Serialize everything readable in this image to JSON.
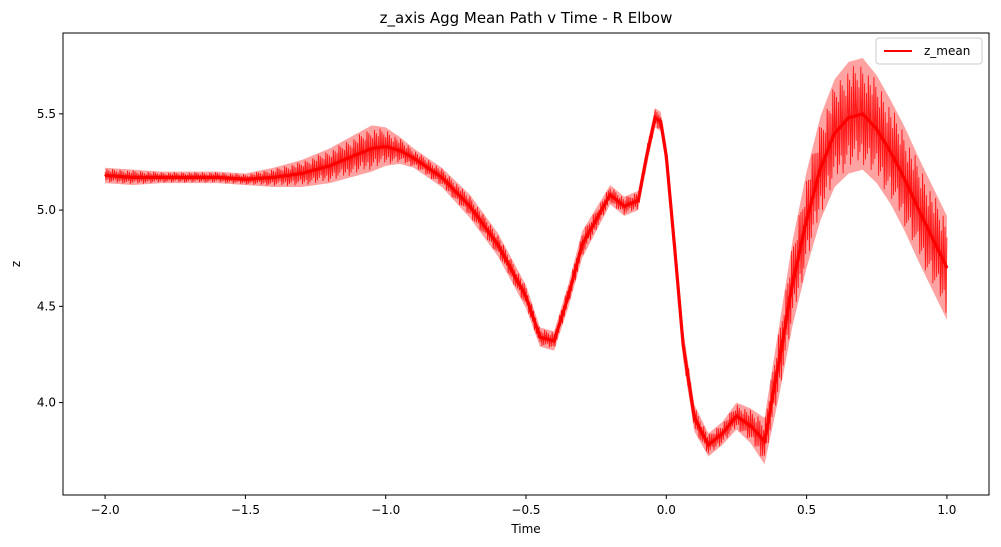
{
  "chart_data": {
    "type": "line",
    "title": "z_axis Agg Mean Path v Time - R Elbow",
    "xlabel": "Time",
    "ylabel": "z",
    "xlim": [
      -2.15,
      1.15
    ],
    "ylim": [
      3.52,
      5.92
    ],
    "xticks": [
      -2.0,
      -1.5,
      -1.0,
      -0.5,
      0.0,
      0.5,
      1.0
    ],
    "xtick_labels": [
      "−2.0",
      "−1.5",
      "−1.0",
      "−0.5",
      "0.0",
      "0.5",
      "1.0"
    ],
    "yticks": [
      4.0,
      4.5,
      5.0,
      5.5
    ],
    "ytick_labels": [
      "4.0",
      "4.5",
      "5.0",
      "5.5"
    ],
    "grid": false,
    "legend_position": "top-right",
    "colors": {
      "line": "#ff0000",
      "band": "#ff5555"
    },
    "series": [
      {
        "name": "z_mean",
        "x": [
          -2.0,
          -1.9,
          -1.8,
          -1.7,
          -1.6,
          -1.5,
          -1.4,
          -1.3,
          -1.2,
          -1.1,
          -1.05,
          -1.0,
          -0.95,
          -0.9,
          -0.8,
          -0.7,
          -0.6,
          -0.5,
          -0.45,
          -0.4,
          -0.35,
          -0.3,
          -0.25,
          -0.2,
          -0.15,
          -0.1,
          -0.07,
          -0.04,
          -0.02,
          0.0,
          0.03,
          0.06,
          0.1,
          0.15,
          0.2,
          0.25,
          0.3,
          0.35,
          0.4,
          0.45,
          0.5,
          0.55,
          0.6,
          0.65,
          0.7,
          0.75,
          0.8,
          0.85,
          0.9,
          0.95,
          1.0
        ],
        "values": [
          5.18,
          5.17,
          5.17,
          5.17,
          5.17,
          5.16,
          5.17,
          5.19,
          5.23,
          5.29,
          5.32,
          5.33,
          5.31,
          5.27,
          5.17,
          5.02,
          4.82,
          4.55,
          4.34,
          4.32,
          4.55,
          4.82,
          4.95,
          5.08,
          5.02,
          5.05,
          5.28,
          5.48,
          5.46,
          5.28,
          4.8,
          4.3,
          3.92,
          3.78,
          3.84,
          3.93,
          3.88,
          3.8,
          4.2,
          4.62,
          4.95,
          5.22,
          5.4,
          5.48,
          5.5,
          5.42,
          5.3,
          5.16,
          5.0,
          4.85,
          4.7
        ],
        "band_width": [
          0.04,
          0.04,
          0.03,
          0.03,
          0.03,
          0.03,
          0.05,
          0.07,
          0.09,
          0.11,
          0.12,
          0.1,
          0.07,
          0.05,
          0.05,
          0.06,
          0.06,
          0.06,
          0.05,
          0.05,
          0.06,
          0.07,
          0.06,
          0.05,
          0.05,
          0.05,
          0.05,
          0.05,
          0.05,
          0.06,
          0.08,
          0.08,
          0.07,
          0.06,
          0.06,
          0.07,
          0.09,
          0.12,
          0.18,
          0.22,
          0.25,
          0.27,
          0.28,
          0.29,
          0.29,
          0.28,
          0.27,
          0.27,
          0.27,
          0.27,
          0.27
        ]
      }
    ]
  }
}
